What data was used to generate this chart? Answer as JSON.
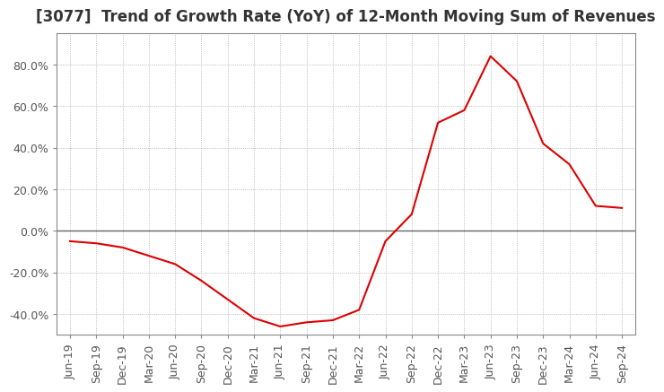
{
  "title": "[3077]  Trend of Growth Rate (YoY) of 12-Month Moving Sum of Revenues",
  "title_fontsize": 12,
  "line_color": "#dd0000",
  "background_color": "#ffffff",
  "grid_color": "#aaaaaa",
  "ylim": [
    -50,
    95
  ],
  "yticks": [
    -40,
    -20,
    0,
    20,
    40,
    60,
    80
  ],
  "ytick_labels": [
    "-40.0%",
    "-20.0%",
    "0.0%",
    "20.0%",
    "40.0%",
    "60.0%",
    "80.0%"
  ],
  "dates": [
    "Jun-19",
    "Sep-19",
    "Dec-19",
    "Mar-20",
    "Jun-20",
    "Sep-20",
    "Dec-20",
    "Mar-21",
    "Jun-21",
    "Sep-21",
    "Dec-21",
    "Mar-22",
    "Jun-22",
    "Sep-22",
    "Dec-22",
    "Mar-23",
    "Jun-23",
    "Sep-23",
    "Dec-23",
    "Mar-24",
    "Jun-24",
    "Sep-24"
  ],
  "values": [
    -5,
    -6,
    -8,
    -12,
    -16,
    -24,
    -33,
    -42,
    -46,
    -44,
    -43,
    -38,
    -5,
    8,
    52,
    58,
    84,
    72,
    42,
    32,
    12,
    11
  ],
  "tick_fontsize": 9,
  "zero_line_color": "#666666",
  "spine_color": "#888888"
}
